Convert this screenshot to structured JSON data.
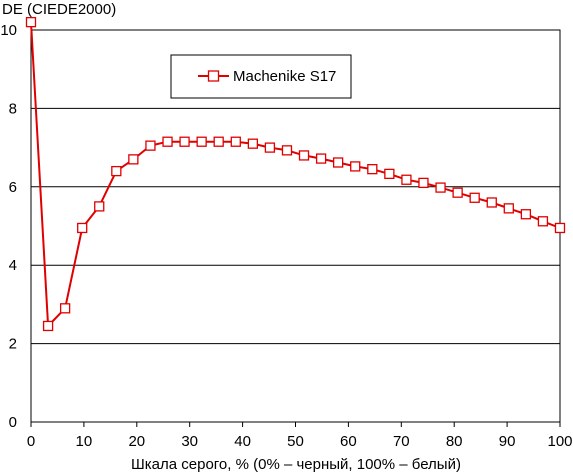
{
  "chart_data": {
    "type": "line",
    "ylabel": "DE (CIEDE2000)",
    "xlabel": "Шкала серого, % (0% – черный, 100% – белый)",
    "xlim": [
      0,
      100
    ],
    "ylim": [
      0,
      10
    ],
    "xticks": [
      0,
      10,
      20,
      30,
      40,
      50,
      60,
      70,
      80,
      90,
      100
    ],
    "yticks": [
      0,
      2,
      4,
      6,
      8,
      10
    ],
    "grid": "horizontal",
    "legend_position": "top-center",
    "series": [
      {
        "name": "Machenike S17",
        "color": "#e00000",
        "marker": "square",
        "x": [
          0,
          3.23,
          6.45,
          9.68,
          12.9,
          16.13,
          19.35,
          22.58,
          25.81,
          29.03,
          32.26,
          35.48,
          38.71,
          41.94,
          45.16,
          48.39,
          51.61,
          54.84,
          58.06,
          61.29,
          64.52,
          67.74,
          70.97,
          74.19,
          77.42,
          80.65,
          83.87,
          87.1,
          90.32,
          93.55,
          96.77,
          100
        ],
        "y": [
          10.2,
          2.45,
          2.9,
          4.95,
          5.5,
          6.4,
          6.7,
          7.05,
          7.15,
          7.15,
          7.15,
          7.15,
          7.15,
          7.1,
          7.0,
          6.93,
          6.8,
          6.72,
          6.62,
          6.52,
          6.45,
          6.33,
          6.18,
          6.1,
          5.98,
          5.85,
          5.72,
          5.6,
          5.45,
          5.3,
          5.12,
          4.95
        ]
      }
    ]
  }
}
